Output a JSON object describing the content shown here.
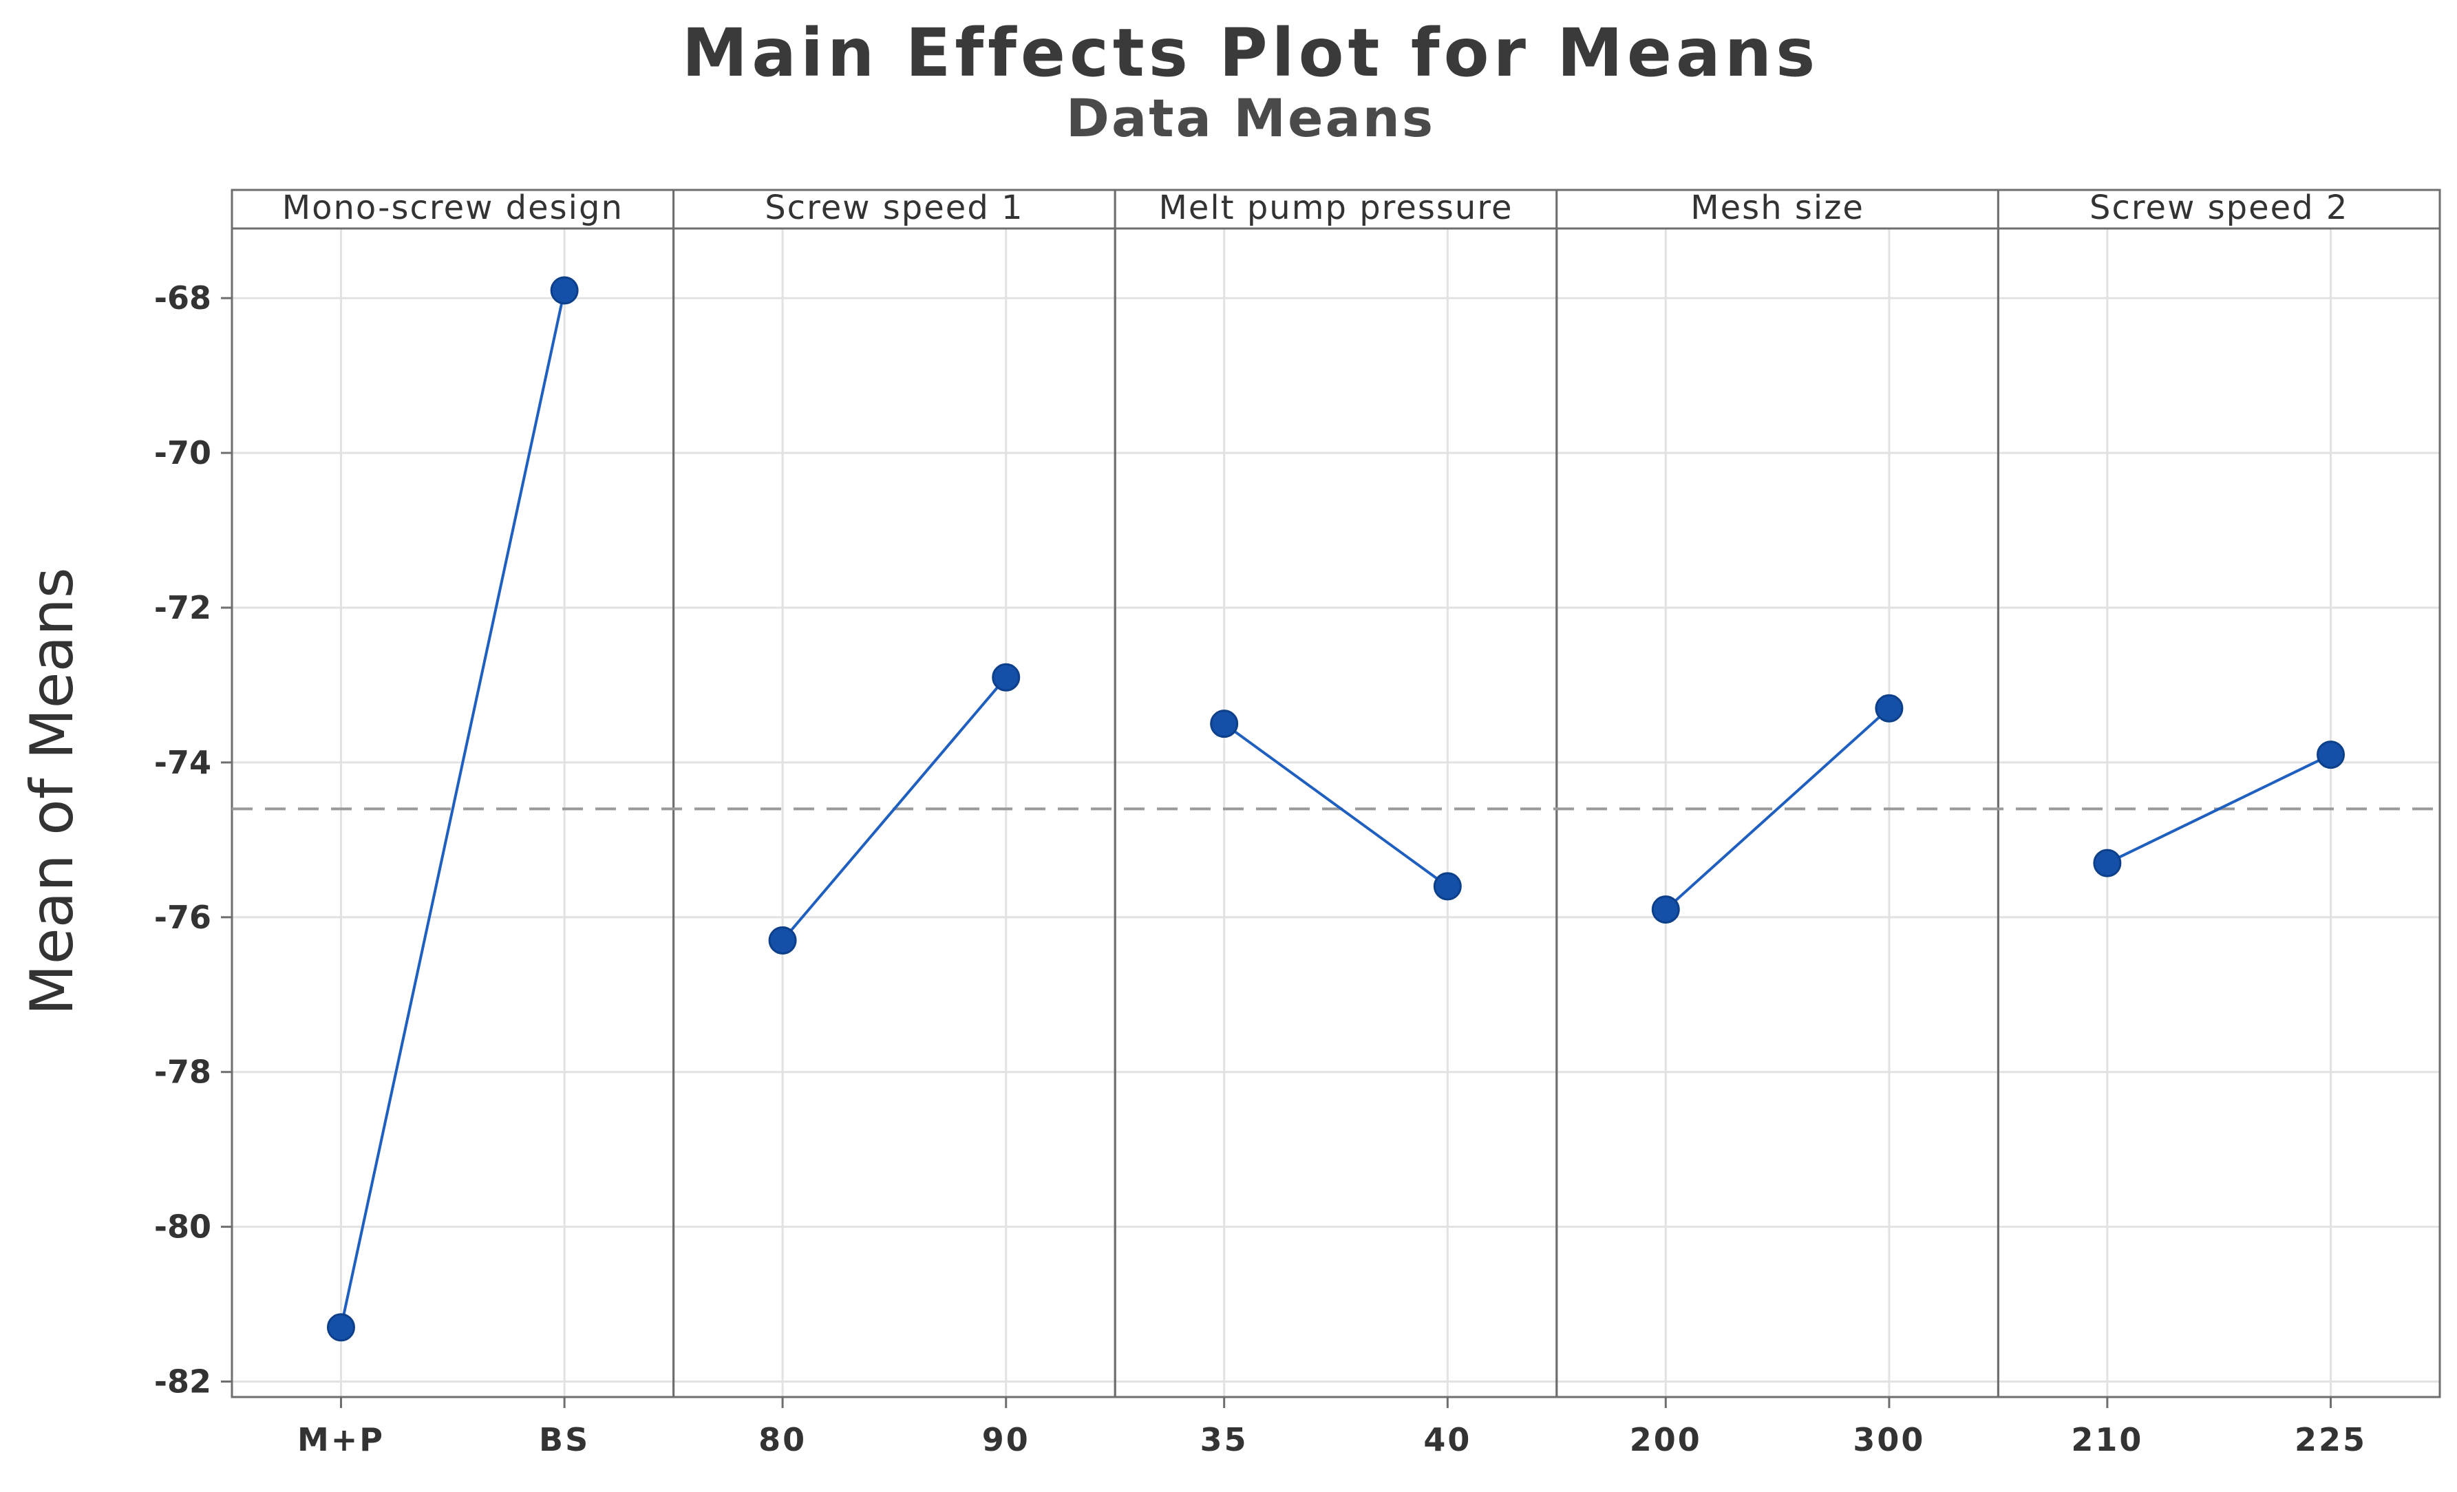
{
  "chart_data": {
    "type": "line",
    "title": "Main Effects Plot for Means",
    "subtitle": "Data Means",
    "ylabel": "Mean of Means",
    "ylim": [
      -82.2,
      -67.1
    ],
    "yticks": [
      -82,
      -80,
      -78,
      -76,
      -74,
      -72,
      -70,
      -68
    ],
    "ytick_labels": [
      "-82",
      "-80",
      "-78",
      "-76",
      "-74",
      "-72",
      "-70",
      "-68"
    ],
    "grid": true,
    "reference_line": {
      "value": -74.6,
      "style": "dashed"
    },
    "panels": [
      {
        "name": "Mono-screw design",
        "categories": [
          "M+P",
          "BS"
        ],
        "values": [
          -81.3,
          -67.9
        ]
      },
      {
        "name": "Screw speed 1",
        "categories": [
          "80",
          "90"
        ],
        "values": [
          -76.3,
          -72.9
        ]
      },
      {
        "name": "Melt pump pressure",
        "categories": [
          "35",
          "40"
        ],
        "values": [
          -73.5,
          -75.6
        ]
      },
      {
        "name": "Mesh size",
        "categories": [
          "200",
          "300"
        ],
        "values": [
          -75.9,
          -73.3
        ]
      },
      {
        "name": "Screw speed 2",
        "categories": [
          "210",
          "225"
        ],
        "values": [
          -75.3,
          -73.9
        ]
      }
    ],
    "colors": {
      "series": "#1f5fbf",
      "marker": "#1450a8",
      "reference": "#9a9a9a",
      "grid": "#e2e2e2",
      "frame": "#6e6e6e"
    }
  }
}
